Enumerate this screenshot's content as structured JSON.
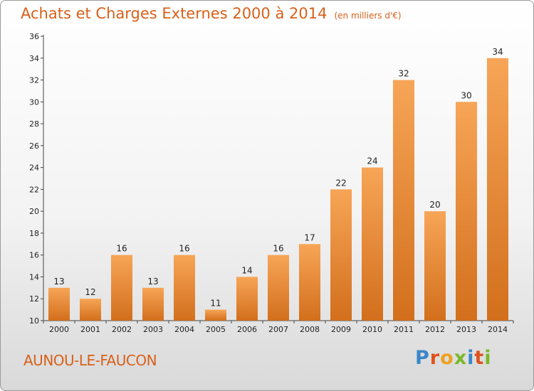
{
  "header": {
    "title": "Achats et Charges Externes 2000 à 2014",
    "unit": "(en milliers d'€)"
  },
  "footer": {
    "commune": "AUNOU-LE-FAUCON",
    "logo": "Proxiti"
  },
  "colors": {
    "accent": "#d8601a",
    "bar_light": "#f7a557",
    "bar_dark": "#d26f1c"
  },
  "chart_data": {
    "type": "bar",
    "title": "Achats et Charges Externes 2000 à 2014",
    "subtitle": "(en milliers d'€)",
    "xlabel": "",
    "ylabel": "",
    "categories": [
      "2000",
      "2001",
      "2002",
      "2003",
      "2004",
      "2005",
      "2006",
      "2007",
      "2008",
      "2009",
      "2010",
      "2011",
      "2012",
      "2013",
      "2014"
    ],
    "values": [
      13,
      12,
      16,
      13,
      16,
      11,
      14,
      16,
      17,
      22,
      24,
      32,
      20,
      30,
      34
    ],
    "ylim": [
      10,
      36
    ],
    "yticks": [
      10,
      12,
      14,
      16,
      18,
      20,
      22,
      24,
      26,
      28,
      30,
      32,
      34,
      36
    ],
    "grid": false,
    "data_labels": true
  }
}
